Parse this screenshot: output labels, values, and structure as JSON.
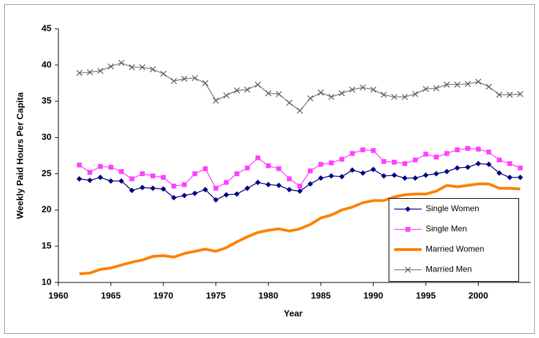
{
  "chart_data": {
    "type": "line",
    "x_label": "Year",
    "y_label": "Weekly Paid Hours Per Capita",
    "x": [
      1962,
      1963,
      1964,
      1965,
      1966,
      1967,
      1968,
      1969,
      1970,
      1971,
      1972,
      1973,
      1974,
      1975,
      1976,
      1977,
      1978,
      1979,
      1980,
      1981,
      1982,
      1983,
      1984,
      1985,
      1986,
      1987,
      1988,
      1989,
      1990,
      1991,
      1992,
      1993,
      1994,
      1995,
      1996,
      1997,
      1998,
      1999,
      2000,
      2001,
      2002,
      2003,
      2004
    ],
    "series": [
      {
        "name": "Single Women",
        "color": "#000080",
        "marker": "diamond",
        "values": [
          24.3,
          24.1,
          24.5,
          24.0,
          24.0,
          22.7,
          23.1,
          23.0,
          22.9,
          21.7,
          22.0,
          22.3,
          22.8,
          21.4,
          22.1,
          22.2,
          23.0,
          23.8,
          23.5,
          23.4,
          22.8,
          22.6,
          23.6,
          24.4,
          24.7,
          24.6,
          25.5,
          25.1,
          25.6,
          24.7,
          24.8,
          24.4,
          24.4,
          24.8,
          25.0,
          25.3,
          25.8,
          25.9,
          26.4,
          26.3,
          25.1,
          24.5,
          24.5
        ]
      },
      {
        "name": "Single Men",
        "color": "#ff40ff",
        "marker": "square",
        "values": [
          26.2,
          25.2,
          26.0,
          25.9,
          25.3,
          24.3,
          25.0,
          24.7,
          24.5,
          23.3,
          23.5,
          25.0,
          25.7,
          23.0,
          23.8,
          25.0,
          25.8,
          27.2,
          26.1,
          25.7,
          24.3,
          23.3,
          25.4,
          26.3,
          26.5,
          27.0,
          27.8,
          28.3,
          28.2,
          26.7,
          26.6,
          26.4,
          26.9,
          27.7,
          27.3,
          27.8,
          28.3,
          28.5,
          28.4,
          28.0,
          26.9,
          26.4,
          25.8
        ]
      },
      {
        "name": "Married Women",
        "color": "#ff8000",
        "marker": "none",
        "values": [
          11.2,
          11.3,
          11.8,
          12.0,
          12.4,
          12.8,
          13.1,
          13.6,
          13.7,
          13.5,
          14.0,
          14.3,
          14.6,
          14.3,
          14.8,
          15.6,
          16.3,
          16.9,
          17.2,
          17.4,
          17.1,
          17.4,
          18.0,
          18.9,
          19.3,
          20.0,
          20.4,
          21.0,
          21.3,
          21.3,
          21.8,
          22.1,
          22.2,
          22.2,
          22.6,
          23.4,
          23.2,
          23.4,
          23.6,
          23.6,
          23.0,
          23.0,
          22.9
        ]
      },
      {
        "name": "Married Men",
        "color": "#8b7d5a",
        "marker": "x",
        "values": [
          38.9,
          39.0,
          39.2,
          39.8,
          40.3,
          39.7,
          39.7,
          39.4,
          38.8,
          37.8,
          38.1,
          38.2,
          37.5,
          35.1,
          35.8,
          36.5,
          36.6,
          37.3,
          36.1,
          36.0,
          34.8,
          33.7,
          35.4,
          36.2,
          35.6,
          36.1,
          36.6,
          36.9,
          36.6,
          35.9,
          35.6,
          35.6,
          36.0,
          36.7,
          36.8,
          37.3,
          37.3,
          37.4,
          37.7,
          37.0,
          35.9,
          35.9,
          36.0
        ]
      }
    ],
    "xlim": [
      1960,
      2005
    ],
    "xticks": [
      1960,
      1965,
      1970,
      1975,
      1980,
      1985,
      1990,
      1995,
      2000
    ],
    "ylim": [
      10,
      45
    ],
    "yticks": [
      10,
      15,
      20,
      25,
      30,
      35,
      40,
      45
    ],
    "grid": false,
    "legend": "lower right"
  }
}
